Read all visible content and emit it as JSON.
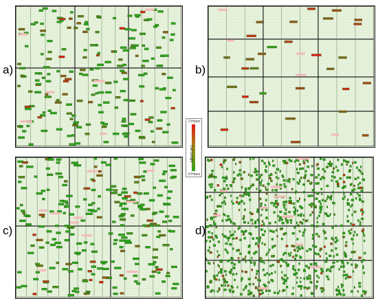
{
  "panels": [
    {
      "id": "a",
      "label": "a)"
    },
    {
      "id": "b",
      "label": "b)"
    },
    {
      "id": "c",
      "label": "c)"
    },
    {
      "id": "d",
      "label": "d)"
    }
  ],
  "legend": {
    "top": "2 Hours",
    "middle": "Call Length",
    "bottom": "0 Hours"
  },
  "colors": {
    "cell_bg": "#e7f2dc",
    "call_short": "#2ca51a",
    "call_long": "#e31b12",
    "highlight": "#f4b8b8"
  }
}
